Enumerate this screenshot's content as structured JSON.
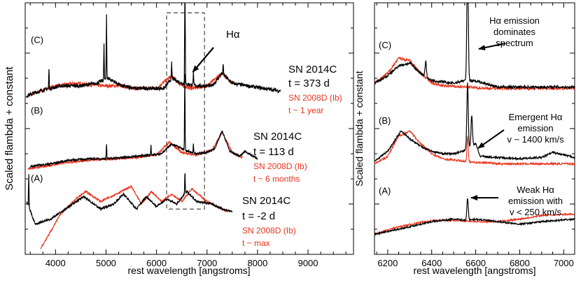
{
  "chart_data": [
    {
      "type": "line",
      "panel": "left",
      "title": "",
      "xlabel": "rest wavelength [angstroms]",
      "ylabel": "Scaled flambda + constant",
      "xlim": [
        3400,
        9900
      ],
      "ylim": [
        0,
        10
      ],
      "xticks": [
        4000,
        5000,
        6000,
        7000,
        8000,
        9000
      ],
      "highlight_box": {
        "x0": 6200,
        "x1": 6950,
        "y0": 1.8,
        "y1": 9.6
      },
      "callout": {
        "label": "Hα",
        "x": 6580
      },
      "spectra": [
        {
          "label": "(C)",
          "name": "SN 2014C",
          "epoch": "t = 373 d",
          "ref_name": "SN 2008D (Ib)",
          "ref_epoch": "t ~ 1 year",
          "baseline": 6.3,
          "noise": 0.09,
          "ref_offset": 0,
          "x": [
            3420,
            3700,
            4100,
            4500,
            4800,
            5050,
            5300,
            5600,
            5900,
            6150,
            6300,
            6500,
            6800,
            7100,
            7300,
            7500,
            7800,
            8100,
            8450
          ],
          "y": [
            0.0,
            0.2,
            0.4,
            0.4,
            0.5,
            0.7,
            0.4,
            0.3,
            0.3,
            0.3,
            0.7,
            0.5,
            0.4,
            0.4,
            0.9,
            0.5,
            0.4,
            0.3,
            0.2
          ],
          "lines": [
            {
              "x": 3870,
              "h": 0.8
            },
            {
              "x": 4960,
              "h": 1.4
            },
            {
              "x": 5010,
              "h": 2.6
            },
            {
              "x": 6300,
              "h": 0.6
            },
            {
              "x": 6563,
              "h": 6.0
            },
            {
              "x": 6730,
              "h": 0.5
            },
            {
              "x": 7320,
              "h": 0.4
            }
          ],
          "ref_x": [
            3450,
            3700,
            4000,
            4400,
            4900,
            5300,
            5600,
            6000,
            6300,
            6500,
            6700,
            7000,
            7300,
            7500
          ],
          "ref_y": [
            0.0,
            0.2,
            0.4,
            0.5,
            0.4,
            0.4,
            0.3,
            0.3,
            0.8,
            0.4,
            0.3,
            0.4,
            0.9,
            0.5
          ]
        },
        {
          "label": "(B)",
          "name": "SN 2014C",
          "epoch": "t = 113 d",
          "ref_name": "SN 2008D (Ib)",
          "ref_epoch": "t ~ 6 months",
          "baseline": 3.5,
          "noise": 0.05,
          "ref_offset": -0.05,
          "x": [
            3500,
            3900,
            4300,
            4700,
            5000,
            5300,
            5600,
            5900,
            6100,
            6300,
            6600,
            6800,
            7000,
            7150,
            7300,
            7450,
            7650,
            7750,
            8000
          ],
          "y": [
            0.0,
            0.1,
            0.25,
            0.3,
            0.3,
            0.35,
            0.4,
            0.45,
            0.5,
            0.9,
            0.6,
            0.5,
            0.55,
            0.7,
            1.4,
            0.6,
            0.4,
            0.6,
            0.3
          ],
          "lines": [
            {
              "x": 5010,
              "h": 0.6
            },
            {
              "x": 5890,
              "h": 0.4
            },
            {
              "x": 6560,
              "h": 3.0
            },
            {
              "x": 6730,
              "h": 0.4
            }
          ],
          "ref_x": [
            3450,
            3800,
            4200,
            4700,
            5200,
            5600,
            6000,
            6250,
            6500,
            6800,
            7100,
            7300,
            7500,
            7700
          ],
          "ref_y": [
            -0.05,
            0.05,
            0.2,
            0.3,
            0.35,
            0.4,
            0.5,
            1.0,
            0.6,
            0.5,
            0.7,
            1.4,
            0.6,
            0.4
          ]
        },
        {
          "label": "(A)",
          "name": "SN 2014C",
          "epoch": "t = -2 d",
          "ref_name": "SN 2008D (Ib)",
          "ref_epoch": "t ~ max",
          "baseline": 0.8,
          "noise": 0.05,
          "ref_offset": 0,
          "x": [
            3430,
            3600,
            3900,
            4200,
            4550,
            4900,
            5150,
            5350,
            5600,
            5800,
            6000,
            6200,
            6400,
            6600,
            6800,
            7100,
            7300,
            7500
          ],
          "y": [
            1.3,
            0.4,
            0.6,
            1.0,
            1.5,
            1.0,
            1.2,
            1.6,
            1.0,
            1.5,
            1.1,
            1.4,
            1.2,
            1.7,
            1.3,
            1.2,
            1.0,
            0.9
          ],
          "lines": [
            {
              "x": 3470,
              "h": 1.3
            },
            {
              "x": 6563,
              "h": 0.9
            }
          ],
          "ref_x": [
            3700,
            3900,
            4100,
            4400,
            4600,
            4900,
            5200,
            5500,
            5700,
            5900,
            6100,
            6300,
            6500,
            6700,
            7000,
            7200,
            7400
          ],
          "ref_y": [
            -0.6,
            0.1,
            0.8,
            1.4,
            1.7,
            1.3,
            1.6,
            1.9,
            1.2,
            1.7,
            1.3,
            1.6,
            1.3,
            1.8,
            1.3,
            1.1,
            0.9
          ]
        }
      ]
    },
    {
      "type": "line",
      "panel": "right",
      "title": "",
      "xlabel": "rest wavelength [angstroms]",
      "ylabel": "Scaled flambda + constant",
      "xlim": [
        6140,
        7050
      ],
      "ylim": [
        0,
        10
      ],
      "xticks": [
        6200,
        6400,
        6600,
        6800,
        7000
      ],
      "spectra": [
        {
          "label": "(C)",
          "note": "Hα emission dominates spectrum",
          "note_lines": [
            "Hα emission",
            "dominates",
            "spectrum"
          ],
          "baseline": 6.6,
          "noise": 0.07,
          "x": [
            6140,
            6200,
            6250,
            6300,
            6350,
            6400,
            6450,
            6500,
            6540,
            6600,
            6640,
            6700,
            6800,
            6900,
            7050
          ],
          "y": [
            0.2,
            0.5,
            0.9,
            1.0,
            0.6,
            0.3,
            0.25,
            0.2,
            0.3,
            0.3,
            0.2,
            0.05,
            0.05,
            0.05,
            0.05
          ],
          "lines": [
            {
              "x": 6563,
              "h": 4.8
            },
            {
              "x": 6373,
              "h": 0.6
            }
          ],
          "ref_x": [
            6140,
            6200,
            6250,
            6300,
            6350,
            6400,
            6450,
            6550,
            6650,
            6800,
            7050
          ],
          "ref_y": [
            0.2,
            0.6,
            1.2,
            1.1,
            0.6,
            0.2,
            0.1,
            0.05,
            0.0,
            0.0,
            0.0
          ]
        },
        {
          "label": "(B)",
          "note": "Emergent Hα emission v ~ 1400 km/s",
          "note_lines": [
            "Emergent Hα",
            "emission",
            "v ~ 1400 km/s"
          ],
          "baseline": 3.6,
          "noise": 0.05,
          "x": [
            6140,
            6200,
            6260,
            6300,
            6350,
            6400,
            6450,
            6500,
            6540,
            6600,
            6620,
            6700,
            6800,
            6900,
            6950,
            7050
          ],
          "y": [
            0.1,
            0.5,
            1.3,
            1.0,
            0.7,
            0.5,
            0.4,
            0.4,
            0.5,
            0.8,
            0.3,
            0.25,
            0.2,
            0.25,
            0.45,
            0.25
          ],
          "lines": [
            {
              "x": 6563,
              "h": 2.6
            },
            {
              "x": 6582,
              "h": 1.2
            }
          ],
          "ref_x": [
            6140,
            6200,
            6250,
            6300,
            6350,
            6400,
            6450,
            6500,
            6550,
            6600,
            6650,
            6700,
            6800,
            7050
          ],
          "ref_y": [
            0.0,
            0.3,
            1.1,
            1.3,
            0.8,
            0.4,
            0.2,
            0.15,
            0.1,
            0.05,
            0.05,
            0.0,
            0.0,
            0.0
          ],
          "ref_lines": [
            {
              "x": 6563,
              "h": 1.0
            }
          ]
        },
        {
          "label": "(A)",
          "note": "Weak Hα emission with v < 250 km/s",
          "note_lines": [
            "Weak Hα",
            "emission with",
            "v < 250 km/s"
          ],
          "baseline": 0.8,
          "noise": 0.04,
          "x": [
            6140,
            6250,
            6400,
            6500,
            6560,
            6600,
            6700,
            6800,
            6900,
            7050
          ],
          "y": [
            0.0,
            0.2,
            0.5,
            0.6,
            0.55,
            0.6,
            0.5,
            0.4,
            0.5,
            0.6
          ],
          "lines": [
            {
              "x": 6563,
              "h": 0.9
            }
          ],
          "ref_x": [
            6140,
            6250,
            6400,
            6500,
            6600,
            6700,
            6800,
            6900,
            7050
          ],
          "ref_y": [
            0.0,
            0.3,
            0.55,
            0.55,
            0.5,
            0.5,
            0.6,
            0.75,
            0.8
          ]
        }
      ]
    }
  ],
  "colors": {
    "main": "#000000",
    "ref": "#e8341c",
    "axis": "#000000"
  }
}
